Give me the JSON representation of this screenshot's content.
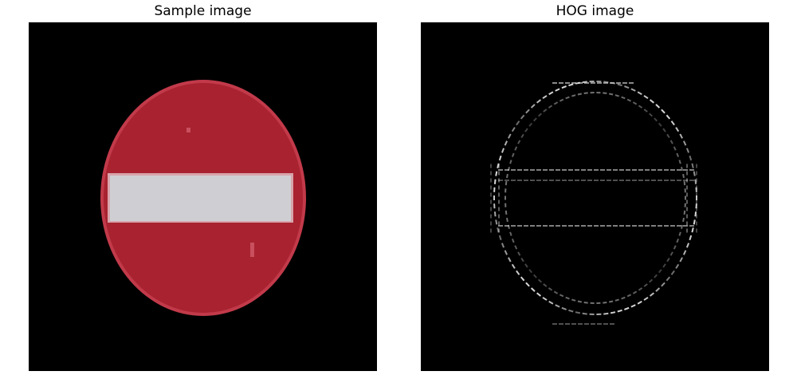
{
  "figure": {
    "left_panel": {
      "title": "Sample image",
      "description_icon": "no-entry-sign-image"
    },
    "right_panel": {
      "title": "HOG image",
      "description_icon": "hog-gradient-visualization"
    }
  },
  "colors": {
    "background": "#000000",
    "sign_red": "#a8222f",
    "sign_red_edge": "#c23a4a",
    "bar_white": "#cfcfd3",
    "hog_stroke": "#e6e6e6"
  }
}
